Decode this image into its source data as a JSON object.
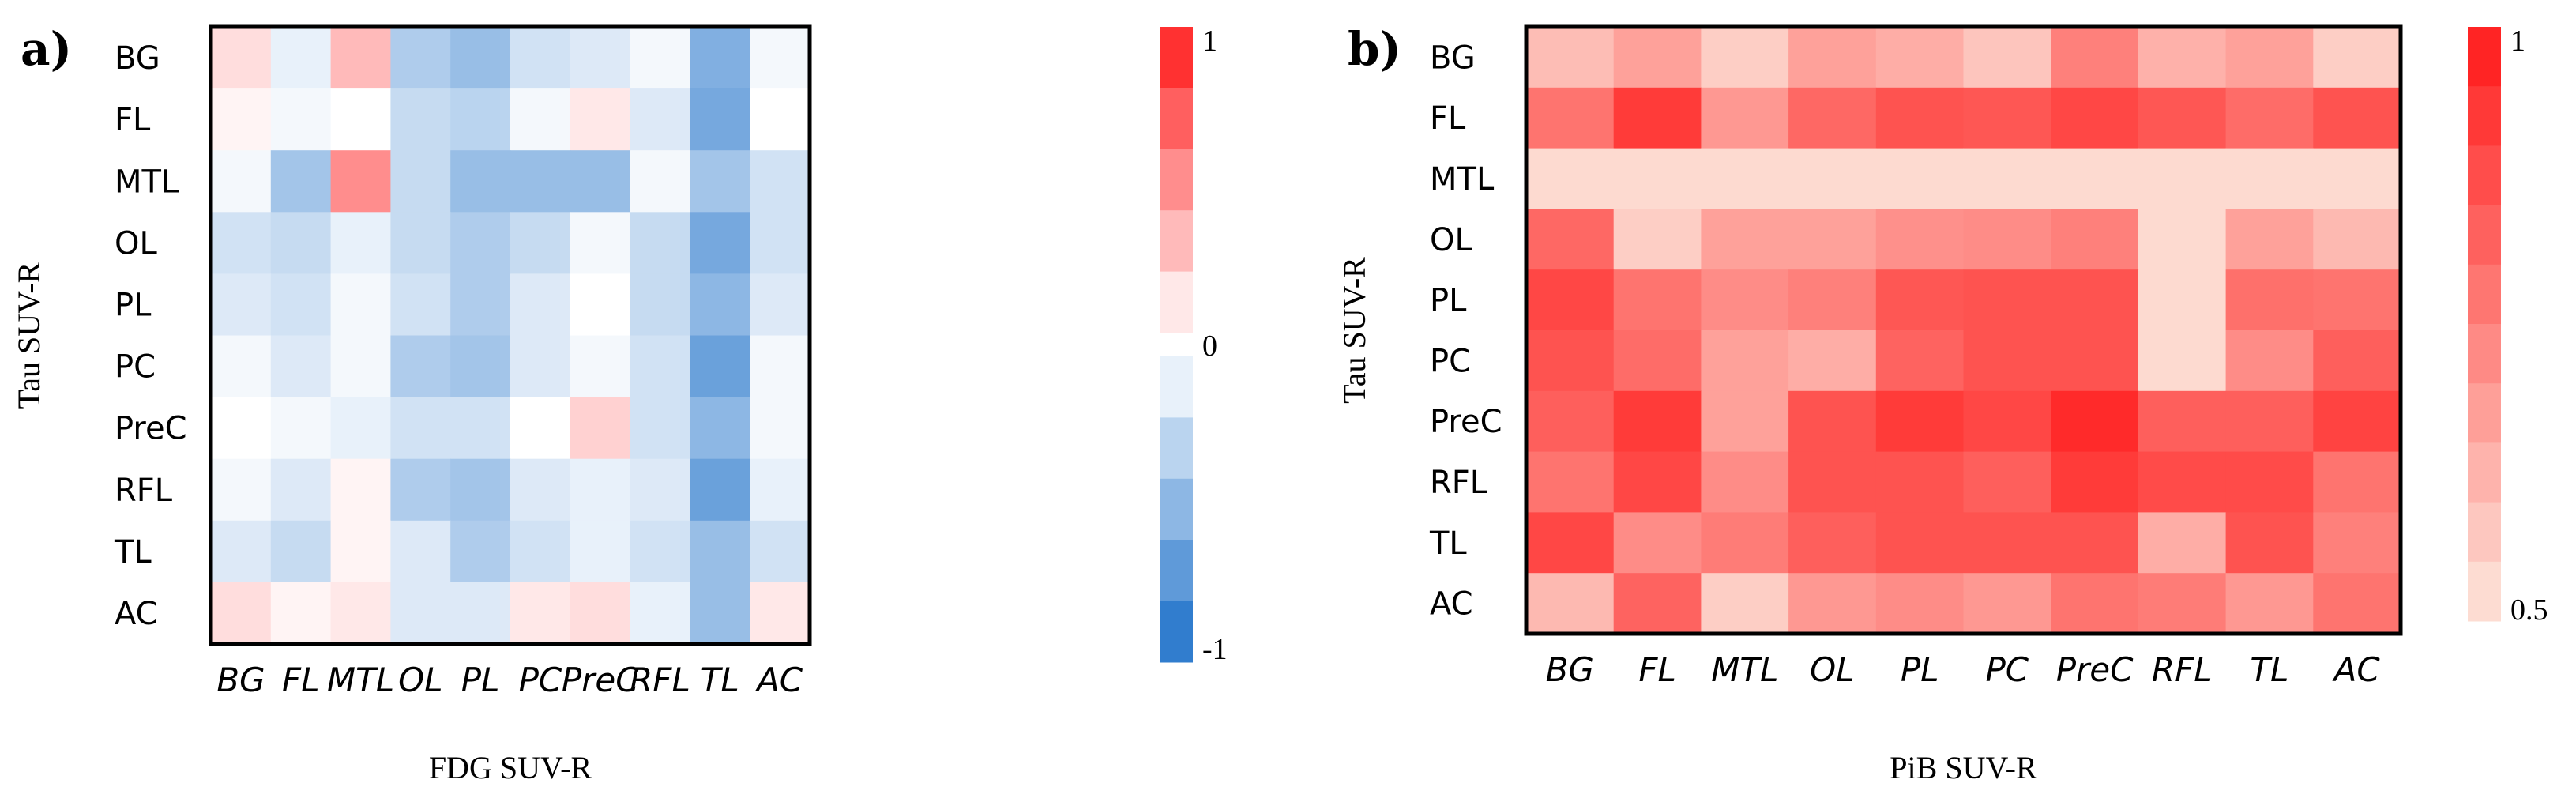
{
  "chart_data": [
    {
      "type": "heatmap",
      "panel": "a)",
      "xlabel": "FDG SUV-R",
      "ylabel": "Tau SUV-R",
      "rows": [
        "BG",
        "FL",
        "MTL",
        "OL",
        "PL",
        "PC",
        "PreC",
        "RFL",
        "TL",
        "AC"
      ],
      "cols": [
        "BG",
        "FL",
        "MTL",
        "OL",
        "PL",
        "PC",
        "PreC",
        "RFL",
        "TL",
        "AC"
      ],
      "values": [
        [
          0.15,
          -0.1,
          0.3,
          -0.35,
          -0.45,
          -0.2,
          -0.15,
          -0.05,
          -0.55,
          -0.05
        ],
        [
          0.05,
          -0.05,
          0.0,
          -0.25,
          -0.3,
          -0.05,
          0.1,
          -0.15,
          -0.6,
          0.0
        ],
        [
          -0.05,
          -0.4,
          0.5,
          -0.25,
          -0.45,
          -0.45,
          -0.45,
          -0.05,
          -0.4,
          -0.2
        ],
        [
          -0.2,
          -0.25,
          -0.1,
          -0.25,
          -0.35,
          -0.25,
          -0.05,
          -0.25,
          -0.6,
          -0.2
        ],
        [
          -0.15,
          -0.2,
          -0.05,
          -0.2,
          -0.35,
          -0.15,
          0.0,
          -0.25,
          -0.5,
          -0.15
        ],
        [
          -0.05,
          -0.15,
          -0.05,
          -0.35,
          -0.4,
          -0.15,
          -0.05,
          -0.2,
          -0.65,
          -0.05
        ],
        [
          0.0,
          -0.05,
          -0.1,
          -0.2,
          -0.2,
          0.0,
          0.2,
          -0.2,
          -0.5,
          -0.05
        ],
        [
          -0.05,
          -0.15,
          0.05,
          -0.35,
          -0.4,
          -0.15,
          -0.1,
          -0.15,
          -0.65,
          -0.1
        ],
        [
          -0.15,
          -0.25,
          0.05,
          -0.15,
          -0.35,
          -0.2,
          -0.1,
          -0.2,
          -0.45,
          -0.2
        ],
        [
          0.15,
          0.05,
          0.1,
          -0.15,
          -0.15,
          0.1,
          0.15,
          -0.1,
          -0.45,
          0.1
        ]
      ],
      "colorbar": {
        "min_label": "-1",
        "mid_label": "0",
        "max_label": "1",
        "vmin": -1,
        "vmax": 1
      }
    },
    {
      "type": "heatmap",
      "panel": "b)",
      "xlabel": "PiB SUV-R",
      "ylabel": "Tau SUV-R",
      "rows": [
        "BG",
        "FL",
        "MTL",
        "OL",
        "PL",
        "PC",
        "PreC",
        "RFL",
        "TL",
        "AC"
      ],
      "cols": [
        "BG",
        "FL",
        "MTL",
        "OL",
        "PL",
        "PC",
        "PreC",
        "RFL",
        "TL",
        "AC"
      ],
      "values": [
        [
          0.6,
          0.67,
          0.56,
          0.67,
          0.64,
          0.58,
          0.75,
          0.63,
          0.67,
          0.56
        ],
        [
          0.78,
          0.92,
          0.69,
          0.81,
          0.86,
          0.85,
          0.89,
          0.85,
          0.8,
          0.86
        ],
        [
          0.53,
          0.53,
          0.53,
          0.53,
          0.53,
          0.53,
          0.53,
          0.53,
          0.53,
          0.53
        ],
        [
          0.81,
          0.56,
          0.67,
          0.67,
          0.71,
          0.72,
          0.75,
          0.53,
          0.67,
          0.61
        ],
        [
          0.89,
          0.78,
          0.72,
          0.75,
          0.85,
          0.86,
          0.86,
          0.53,
          0.79,
          0.78
        ],
        [
          0.86,
          0.8,
          0.67,
          0.64,
          0.82,
          0.86,
          0.86,
          0.53,
          0.72,
          0.83
        ],
        [
          0.83,
          0.92,
          0.67,
          0.86,
          0.92,
          0.89,
          0.96,
          0.83,
          0.83,
          0.9
        ],
        [
          0.78,
          0.89,
          0.72,
          0.86,
          0.86,
          0.83,
          0.92,
          0.88,
          0.88,
          0.78
        ],
        [
          0.89,
          0.72,
          0.76,
          0.83,
          0.86,
          0.86,
          0.86,
          0.64,
          0.86,
          0.75
        ],
        [
          0.61,
          0.82,
          0.56,
          0.69,
          0.72,
          0.69,
          0.78,
          0.76,
          0.69,
          0.78
        ]
      ],
      "colorbar": {
        "min_label": "0.5",
        "max_label": "1",
        "vmin": 0.5,
        "vmax": 1.0
      }
    }
  ],
  "colors": {
    "negative_max": "#1a6ec8",
    "neutral": "#ffffff",
    "positive_max": "#ff1a1a",
    "border": "#000000"
  }
}
